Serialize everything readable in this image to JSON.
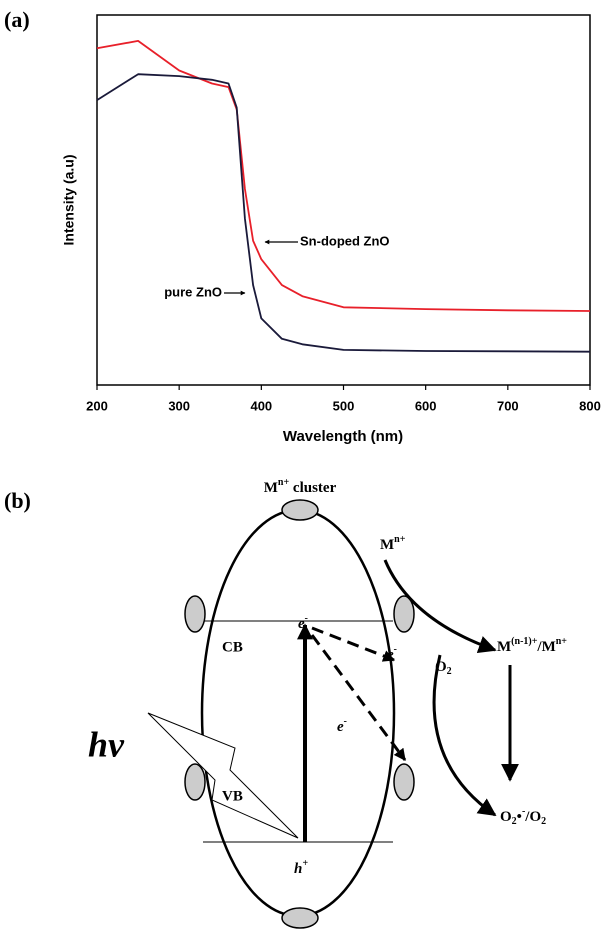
{
  "panel_labels": [
    "(a)",
    "(b)"
  ],
  "chart_data": {
    "type": "line",
    "x_label": "Wavelength (nm)",
    "y_label": "Intensity (a.u)",
    "x": [
      200,
      250,
      300,
      340,
      360,
      370,
      380,
      390,
      400,
      425,
      450,
      500,
      600,
      700,
      800
    ],
    "series": [
      {
        "name": "Sn-doped ZnO",
        "color": "#e8202a",
        "values": [
          0.91,
          0.93,
          0.85,
          0.815,
          0.805,
          0.745,
          0.53,
          0.39,
          0.34,
          0.27,
          0.24,
          0.21,
          0.205,
          0.202,
          0.2
        ]
      },
      {
        "name": "pure ZnO",
        "color": "#1a1a3a",
        "values": [
          0.77,
          0.84,
          0.835,
          0.825,
          0.815,
          0.75,
          0.45,
          0.27,
          0.18,
          0.125,
          0.11,
          0.095,
          0.092,
          0.091,
          0.09
        ]
      }
    ],
    "xlim": [
      200,
      800
    ],
    "xticks": [
      200,
      300,
      400,
      500,
      600,
      700,
      800
    ],
    "ylim": [
      0,
      1
    ]
  },
  "diagram": {
    "cluster": {
      "base": "M",
      "sup": "n+",
      "rest": " cluster"
    },
    "ion": {
      "base": "M",
      "sup": "n+"
    },
    "reduced": {
      "base": "M",
      "sup1": "(n-1)+",
      "mid": "/M",
      "sup2": "n+"
    },
    "cb": "CB",
    "vb": "VB",
    "electron": {
      "base": "e",
      "sup": "-"
    },
    "hole": {
      "base": "h",
      "sup": "+"
    },
    "photon": "hν",
    "oxygen": {
      "base": "O",
      "sub": "2"
    },
    "superoxide": {
      "base": "O",
      "sub": "2",
      "mid": "•",
      "sup": "-",
      "rest": "/O",
      "sub2": "2"
    }
  }
}
